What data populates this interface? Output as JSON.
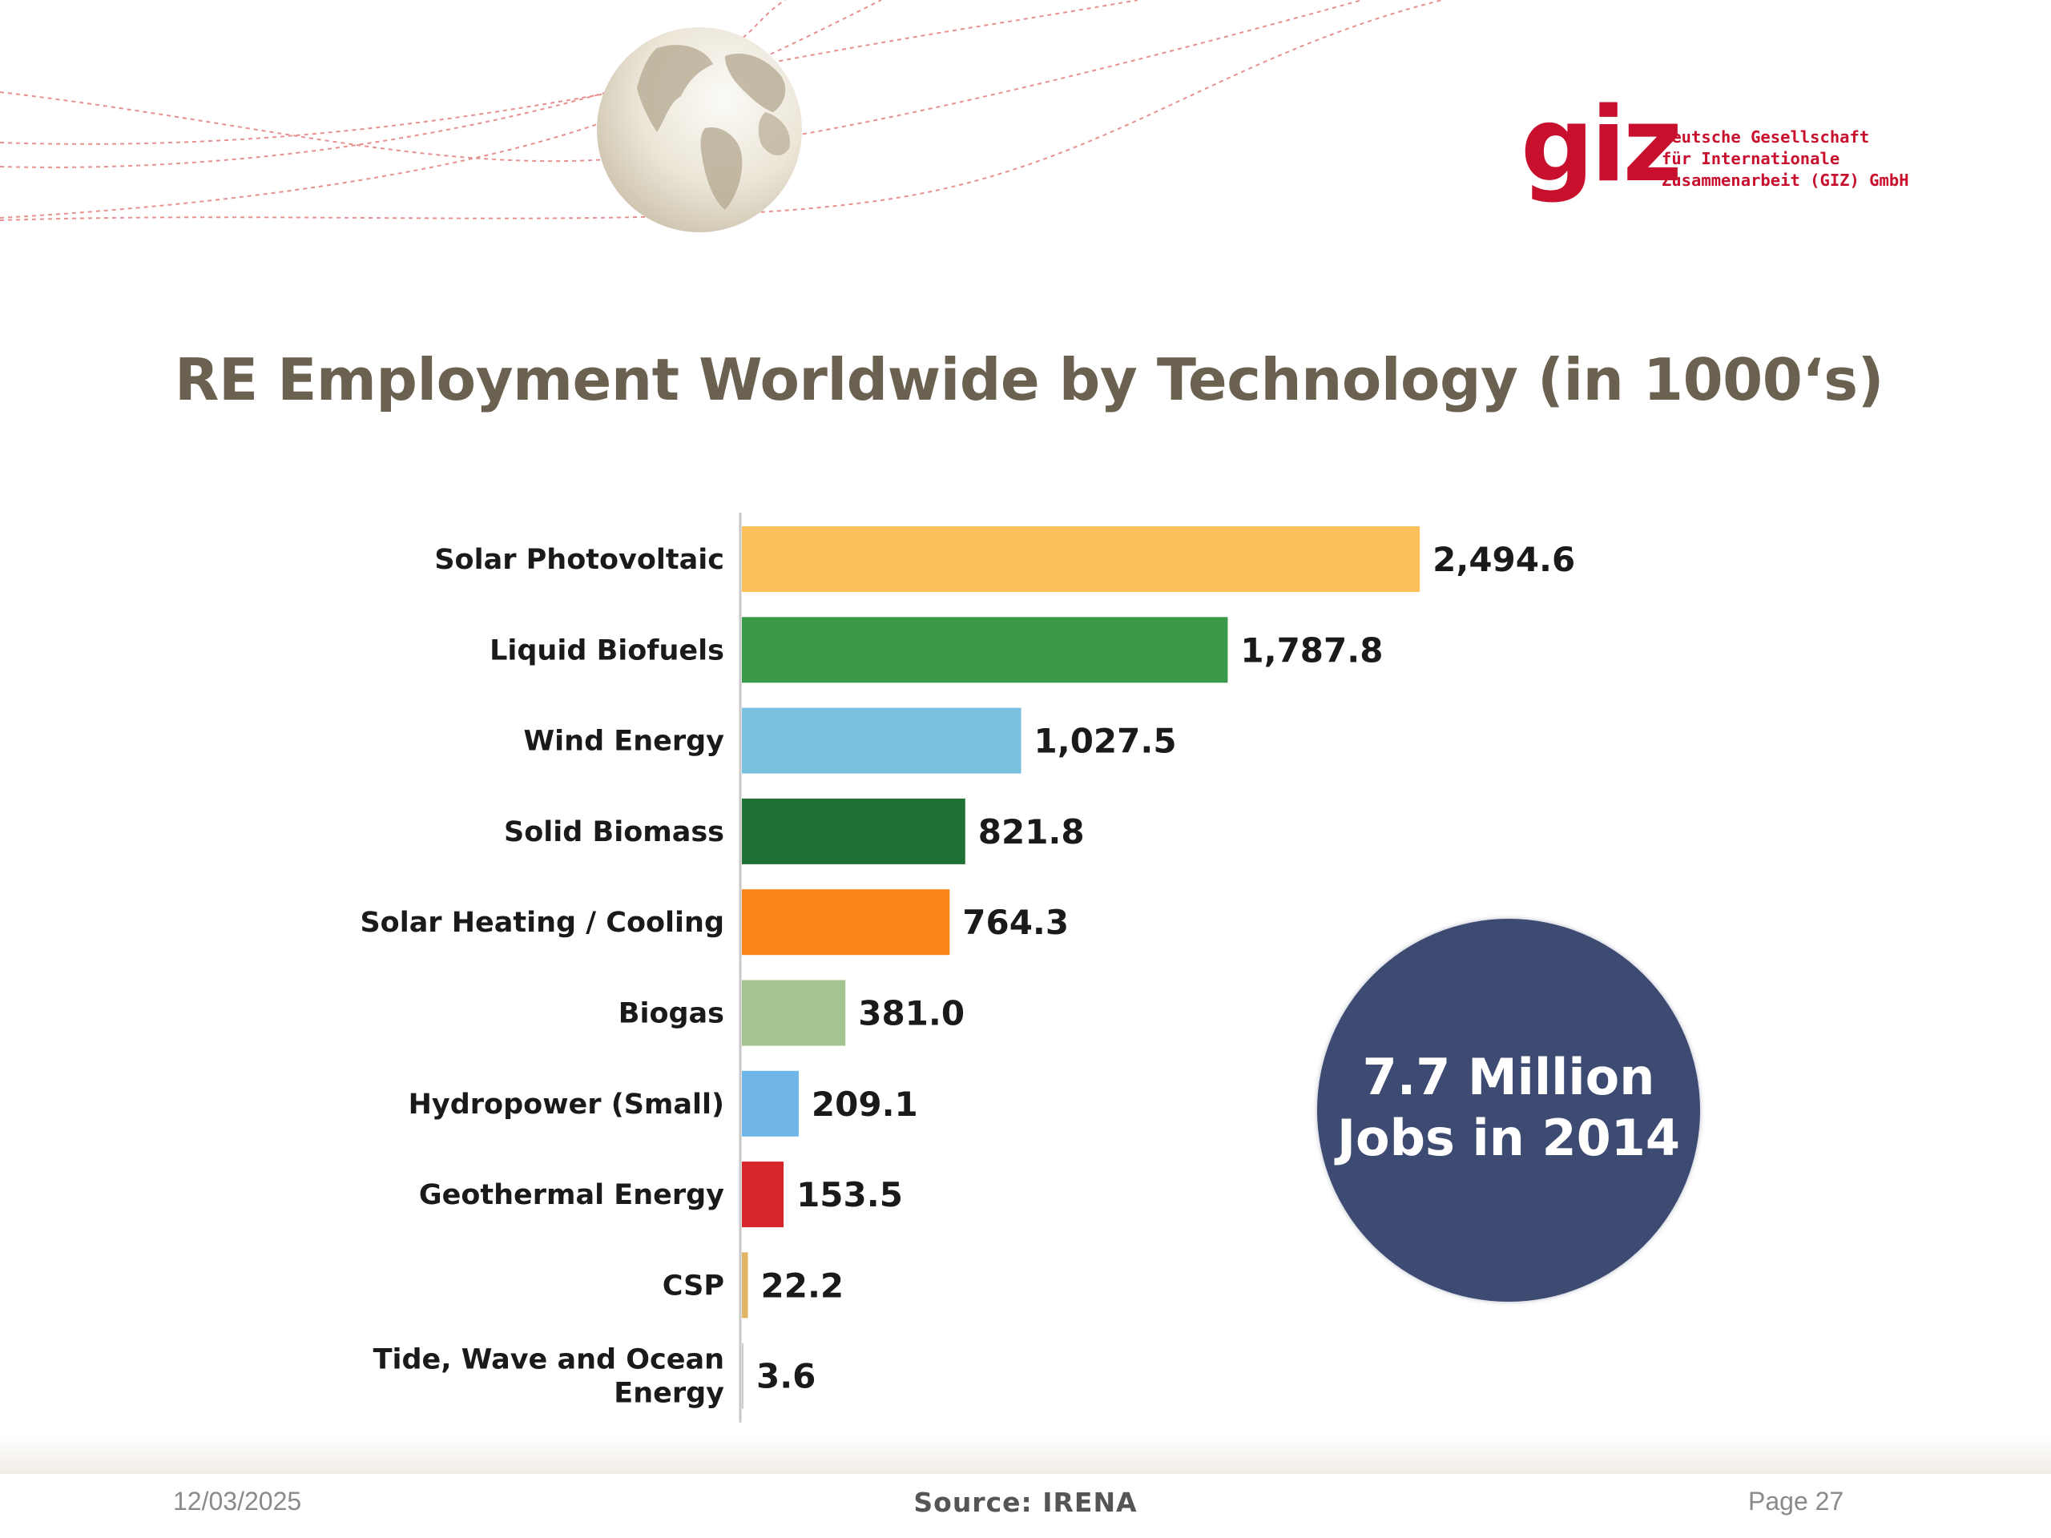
{
  "header": {
    "logo_word": "giz",
    "logo_lines": [
      "Deutsche Gesellschaft",
      "für Internationale",
      "Zusammenarbeit (GIZ) GmbH"
    ]
  },
  "slide": {
    "title": "RE Employment Worldwide by Technology (in 1000‘s)"
  },
  "chart_data": {
    "type": "bar",
    "orientation": "horizontal",
    "title": "RE Employment Worldwide by Technology (in 1000‘s)",
    "categories": [
      "Solar Photovoltaic",
      "Liquid Biofuels",
      "Wind Energy",
      "Solid Biomass",
      "Solar Heating / Cooling",
      "Biogas",
      "Hydropower (Small)",
      "Geothermal Energy",
      "CSP",
      "Tide, Wave and Ocean Energy"
    ],
    "category_lines": [
      [
        "Solar Photovoltaic"
      ],
      [
        "Liquid Biofuels"
      ],
      [
        "Wind Energy"
      ],
      [
        "Solid Biomass"
      ],
      [
        "Solar Heating / Cooling"
      ],
      [
        "Biogas"
      ],
      [
        "Hydropower (Small)"
      ],
      [
        "Geothermal Energy"
      ],
      [
        "CSP"
      ],
      [
        "Tide, Wave and Ocean",
        "Energy"
      ]
    ],
    "values": [
      2494.6,
      1787.8,
      1027.5,
      821.8,
      764.3,
      381.0,
      209.1,
      153.5,
      22.2,
      3.6
    ],
    "value_labels": [
      "2,494.6",
      "1,787.8",
      "1,027.5",
      "821.8",
      "764.3",
      "381.0",
      "209.1",
      "153.5",
      "22.2",
      "3.6"
    ],
    "colors": [
      "#fdc05a",
      "#3a9a4a",
      "#7ac1df",
      "#1e7035",
      "#fb8417",
      "#a4c592",
      "#70b5e7",
      "#d5262b",
      "#e2b565",
      "#cccccc"
    ],
    "xlim": [
      0,
      2500
    ],
    "grid": false,
    "legend": "none"
  },
  "callout": {
    "line1": "7.7 Million",
    "line2": "Jobs in 2014"
  },
  "footer": {
    "date": "12/03/2025",
    "source": "Source: IRENA",
    "page": "Page 27"
  }
}
